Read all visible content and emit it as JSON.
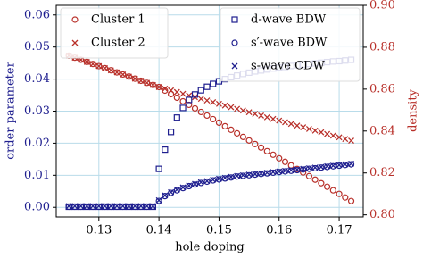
{
  "chart_data": {
    "type": "scatter",
    "x_label": "hole doping",
    "y_label": "order parameter",
    "y2_label": "density",
    "x": [
      0.125,
      0.126,
      0.127,
      0.128,
      0.129,
      0.13,
      0.131,
      0.132,
      0.133,
      0.134,
      0.135,
      0.136,
      0.137,
      0.138,
      0.139,
      0.14,
      0.141,
      0.142,
      0.143,
      0.144,
      0.145,
      0.146,
      0.147,
      0.148,
      0.149,
      0.15,
      0.151,
      0.152,
      0.153,
      0.154,
      0.155,
      0.156,
      0.157,
      0.158,
      0.159,
      0.16,
      0.161,
      0.162,
      0.163,
      0.164,
      0.165,
      0.166,
      0.167,
      0.168,
      0.169,
      0.17,
      0.171,
      0.172
    ],
    "series": [
      {
        "name": "Cluster 1",
        "color": "#b8302a",
        "marker": "circle",
        "axis": "y2",
        "values": [
          0.876,
          0.875,
          0.874,
          0.873,
          0.872,
          0.871,
          0.87,
          0.869,
          0.868,
          0.867,
          0.866,
          0.865,
          0.864,
          0.863,
          0.862,
          0.861,
          0.8593,
          0.8576,
          0.8559,
          0.8542,
          0.8525,
          0.8508,
          0.8491,
          0.8474,
          0.8457,
          0.844,
          0.8423,
          0.8406,
          0.8389,
          0.8372,
          0.8355,
          0.8338,
          0.8321,
          0.8304,
          0.8287,
          0.827,
          0.8253,
          0.8236,
          0.8219,
          0.8202,
          0.8185,
          0.8168,
          0.8151,
          0.8134,
          0.8117,
          0.81,
          0.8083,
          0.8066
        ]
      },
      {
        "name": "Cluster 2",
        "color": "#b8302a",
        "marker": "x",
        "axis": "y2",
        "values": [
          0.876,
          0.875,
          0.874,
          0.873,
          0.872,
          0.871,
          0.87,
          0.869,
          0.868,
          0.867,
          0.866,
          0.865,
          0.864,
          0.863,
          0.862,
          0.861,
          0.8602,
          0.8594,
          0.8586,
          0.8578,
          0.857,
          0.8562,
          0.8554,
          0.8546,
          0.8538,
          0.853,
          0.8522,
          0.8514,
          0.8506,
          0.8498,
          0.849,
          0.8482,
          0.8474,
          0.8466,
          0.8458,
          0.845,
          0.8442,
          0.8434,
          0.8426,
          0.8418,
          0.841,
          0.8402,
          0.8394,
          0.8386,
          0.8378,
          0.837,
          0.8362,
          0.8354
        ]
      },
      {
        "name": "d-wave BDW",
        "color": "#1f1f8f",
        "marker": "square",
        "values": [
          0.0002,
          0.0002,
          0.0002,
          0.0002,
          0.0002,
          0.0002,
          0.0002,
          0.0002,
          0.0002,
          0.0002,
          0.0002,
          0.0002,
          0.0002,
          0.0002,
          0.0002,
          0.012,
          0.018,
          0.0235,
          0.028,
          0.031,
          0.0335,
          0.0352,
          0.0365,
          0.0376,
          0.0385,
          0.0393,
          0.04,
          0.0406,
          0.0411,
          0.0416,
          0.042,
          0.0424,
          0.0427,
          0.043,
          0.0433,
          0.0436,
          0.0438,
          0.0441,
          0.0443,
          0.0445,
          0.0447,
          0.0449,
          0.0451,
          0.0453,
          0.0455,
          0.0456,
          0.0458,
          0.046
        ]
      },
      {
        "name": "s′-wave BDW",
        "color": "#1f1f8f",
        "marker": "circle",
        "values": [
          0.0002,
          0.0002,
          0.0002,
          0.0002,
          0.0002,
          0.0002,
          0.0002,
          0.0002,
          0.0002,
          0.0002,
          0.0002,
          0.0002,
          0.0002,
          0.0002,
          0.0002,
          0.002,
          0.0035,
          0.0045,
          0.0053,
          0.006,
          0.0066,
          0.0071,
          0.0076,
          0.008,
          0.0084,
          0.0087,
          0.009,
          0.0093,
          0.0096,
          0.0098,
          0.01,
          0.0102,
          0.0104,
          0.0106,
          0.0108,
          0.011,
          0.0112,
          0.0114,
          0.0116,
          0.0118,
          0.012,
          0.0122,
          0.0124,
          0.0126,
          0.0128,
          0.013,
          0.0132,
          0.0134
        ]
      },
      {
        "name": "s-wave CDW",
        "color": "#1f1f8f",
        "marker": "x",
        "values": [
          0.0004,
          0.0004,
          0.0004,
          0.0004,
          0.0004,
          0.0004,
          0.0004,
          0.0004,
          0.0004,
          0.0004,
          0.0004,
          0.0004,
          0.0004,
          0.0004,
          0.0004,
          0.0022,
          0.0037,
          0.0047,
          0.0055,
          0.0062,
          0.0068,
          0.0073,
          0.0078,
          0.0082,
          0.0086,
          0.0089,
          0.0092,
          0.0095,
          0.0098,
          0.01,
          0.0102,
          0.0104,
          0.0106,
          0.0108,
          0.011,
          0.0112,
          0.0114,
          0.0116,
          0.0118,
          0.012,
          0.0122,
          0.0124,
          0.0126,
          0.0128,
          0.013,
          0.0132,
          0.0134,
          0.0136
        ]
      }
    ],
    "xlim": [
      0.1229,
      0.174
    ],
    "xticks": [
      0.13,
      0.14,
      0.15,
      0.16,
      0.17
    ],
    "ylim": [
      -0.003,
      0.063
    ],
    "yticks": [
      {
        "value": 0,
        "label": "0.00"
      },
      0.01,
      0.02,
      0.03,
      0.04,
      0.05,
      0.06
    ],
    "y2lim": [
      0.799,
      0.9
    ],
    "y2ticks": [
      {
        "value": 0.8,
        "label": "0.80"
      },
      0.82,
      0.84,
      0.86,
      0.88,
      {
        "value": 0.9,
        "label": "0.90"
      }
    ],
    "grid": true,
    "y_color": "#1f1f8f",
    "y2_color": "#b8302a"
  }
}
